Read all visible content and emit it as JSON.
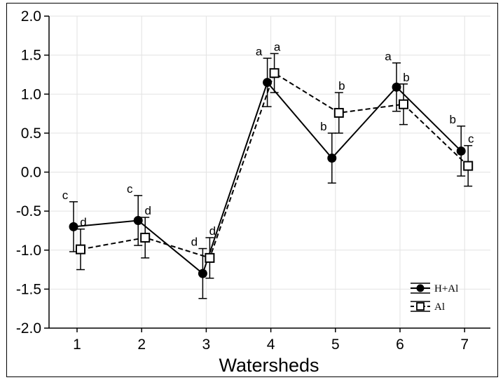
{
  "chart_data": {
    "type": "line",
    "title": "",
    "xlabel": "Watersheds",
    "ylabel": "",
    "categories": [
      "1",
      "2",
      "3",
      "4",
      "5",
      "6",
      "7"
    ],
    "ylim": [
      -2.0,
      2.0
    ],
    "yticks": [
      "2.0",
      "1.5",
      "1.0",
      "0.5",
      "0.0",
      "-0.5",
      "-1.0",
      "-1.5",
      "-2.0"
    ],
    "grid": true,
    "legend_position": "bottom-right",
    "series": [
      {
        "name": "H+Al",
        "marker": "filled-circle",
        "line_style": "solid",
        "values": [
          -0.7,
          -0.62,
          -1.3,
          1.15,
          0.18,
          1.09,
          0.27
        ],
        "error": [
          0.32,
          0.32,
          0.32,
          0.31,
          0.32,
          0.31,
          0.32
        ],
        "letters": [
          "c",
          "c",
          "d",
          "a",
          "b",
          "a",
          "b"
        ]
      },
      {
        "name": "Al",
        "marker": "open-square",
        "line_style": "dashed",
        "values": [
          -0.99,
          -0.84,
          -1.1,
          1.27,
          0.76,
          0.87,
          0.08
        ],
        "error": [
          0.26,
          0.26,
          0.26,
          0.25,
          0.26,
          0.26,
          0.26
        ],
        "letters": [
          "d",
          "d",
          "d",
          "a",
          "b",
          "b",
          "c"
        ]
      }
    ]
  }
}
